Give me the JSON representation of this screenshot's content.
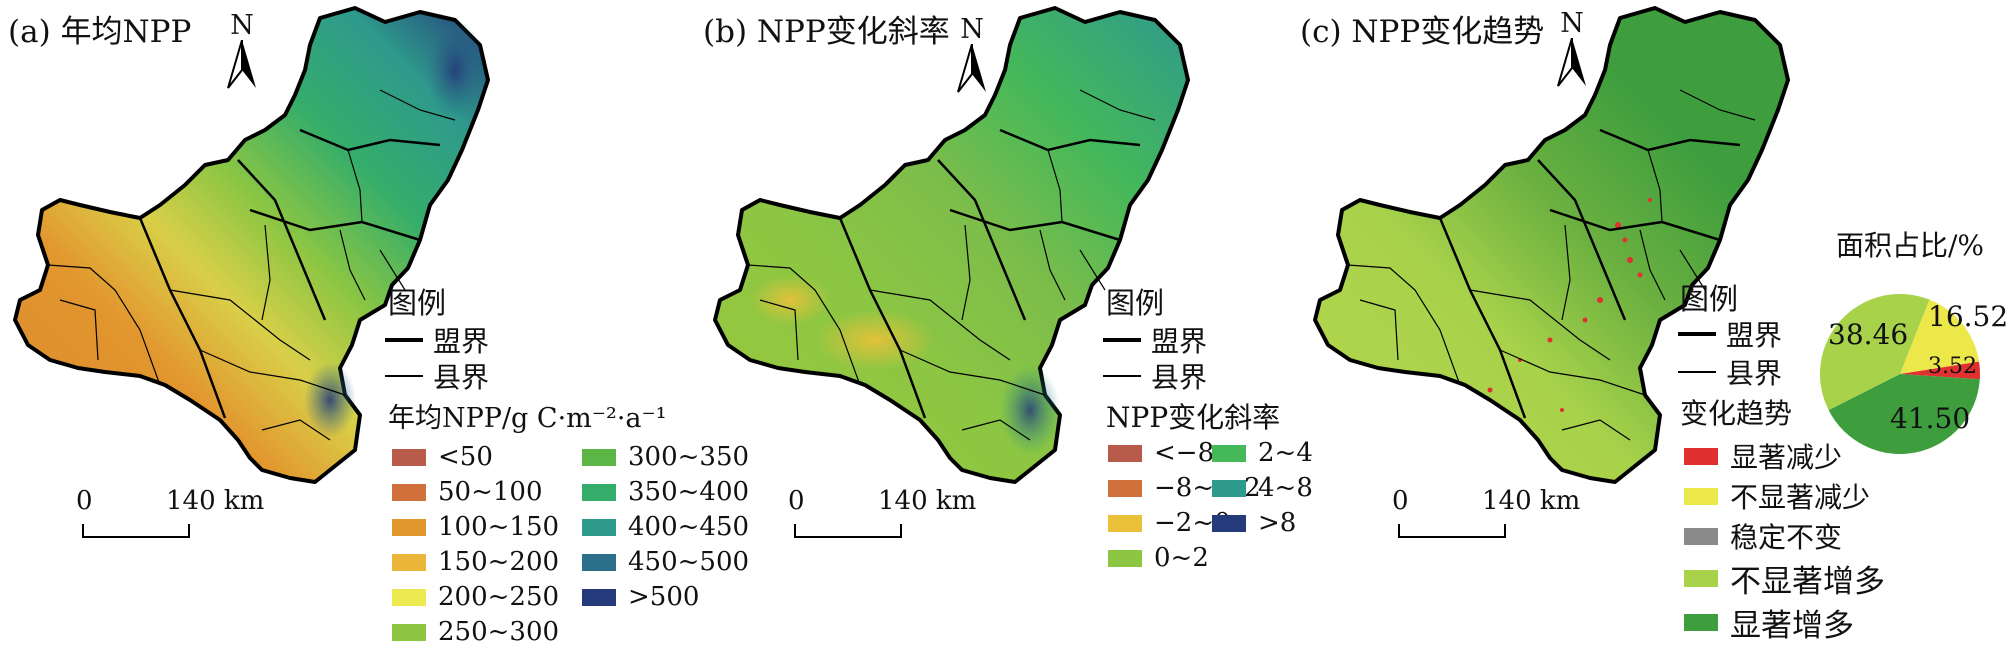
{
  "panels": {
    "a": {
      "title": "(a) 年均NPP",
      "north": "N",
      "legend_title": "图例",
      "league_boundary": "盟界",
      "county_boundary": "县界",
      "class_title": "年均NPP/g C·m⁻²·a⁻¹",
      "classes": [
        {
          "label": "<50",
          "color": "#b85b4a"
        },
        {
          "label": "50~100",
          "color": "#d0703a"
        },
        {
          "label": "100~150",
          "color": "#e2962e"
        },
        {
          "label": "150~200",
          "color": "#ebb63a"
        },
        {
          "label": "200~250",
          "color": "#ecea50"
        },
        {
          "label": "250~300",
          "color": "#8cc643"
        },
        {
          "label": "300~350",
          "color": "#5bb645"
        },
        {
          "label": "350~400",
          "color": "#35ad6a"
        },
        {
          "label": "400~450",
          "color": "#2e9a8c"
        },
        {
          "label": "450~500",
          "color": "#2b6f8a"
        },
        {
          "label": ">500",
          "color": "#253a7a"
        }
      ],
      "scale_start": "0",
      "scale_end": "140 km"
    },
    "b": {
      "title": "(b) NPP变化斜率",
      "north": "N",
      "legend_title": "图例",
      "league_boundary": "盟界",
      "county_boundary": "县界",
      "class_title": "NPP变化斜率",
      "classes": [
        {
          "label": "<−8",
          "color": "#b85b4a"
        },
        {
          "label": "−8~ −2",
          "color": "#d0703a"
        },
        {
          "label": "−2~0",
          "color": "#ebc13a"
        },
        {
          "label": "0~2",
          "color": "#8cc643"
        },
        {
          "label": "2~4",
          "color": "#45b85a"
        },
        {
          "label": "4~8",
          "color": "#2e9a8c"
        },
        {
          "label": ">8",
          "color": "#253a7a"
        }
      ],
      "scale_start": "0",
      "scale_end": "140 km"
    },
    "c": {
      "title": "(c) NPP变化趋势",
      "north": "N",
      "legend_title": "图例",
      "league_boundary": "盟界",
      "county_boundary": "县界",
      "class_title": "变化趋势",
      "classes": [
        {
          "label": "显著减少",
          "color": "#e03030"
        },
        {
          "label": "不显著减少",
          "color": "#ece84a"
        },
        {
          "label": "稳定不变",
          "color": "#8a8a8a"
        },
        {
          "label": "不显著增多",
          "color": "#a8d24a"
        },
        {
          "label": "显著增多",
          "color": "#3e9e3e"
        }
      ],
      "scale_start": "0",
      "scale_end": "140 km",
      "pie": {
        "title": "面积占比/%",
        "slices": [
          {
            "label": "16.52",
            "value": 16.52,
            "color": "#ece84a"
          },
          {
            "label": "3.52",
            "value": 3.52,
            "color": "#e03030"
          },
          {
            "label": "41.50",
            "value": 41.5,
            "color": "#3e9e3e"
          },
          {
            "label": "38.46",
            "value": 38.46,
            "color": "#a8d24a"
          }
        ]
      }
    }
  }
}
